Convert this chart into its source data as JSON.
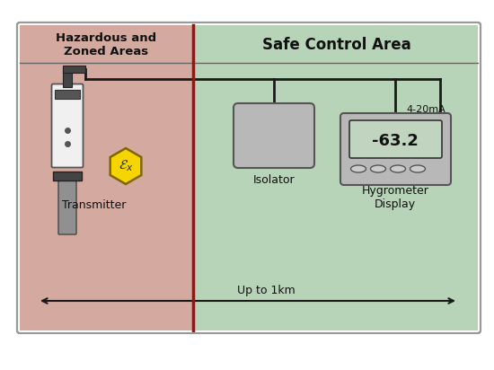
{
  "bg_color": "#ffffff",
  "hazard_bg": "#d4a9a0",
  "safe_bg": "#b8d4b8",
  "outer_border_color": "#999999",
  "divider_color": "#8b1a1a",
  "header_line_color": "#666666",
  "hazard_label": "Hazardous and\nZoned Areas",
  "safe_label": "Safe Control Area",
  "transmitter_label": "Transmitter",
  "isolator_label": "Isolator",
  "hygrometer_label": "Hygrometer\nDisplay",
  "distance_label": "Up to 1km",
  "ma_label": "4-20mA",
  "display_value": "-63.2",
  "line_color": "#1a1a1a",
  "device_fill": "#b8b8b8",
  "device_border": "#555555",
  "transmitter_body_fill": "#f0f0f0",
  "transmitter_probe_fill": "#909090",
  "ex_symbol_bg": "#f5d400",
  "ex_symbol_border": "#806600",
  "display_screen_fill": "#c0d4c0",
  "display_screen_border": "#333333"
}
